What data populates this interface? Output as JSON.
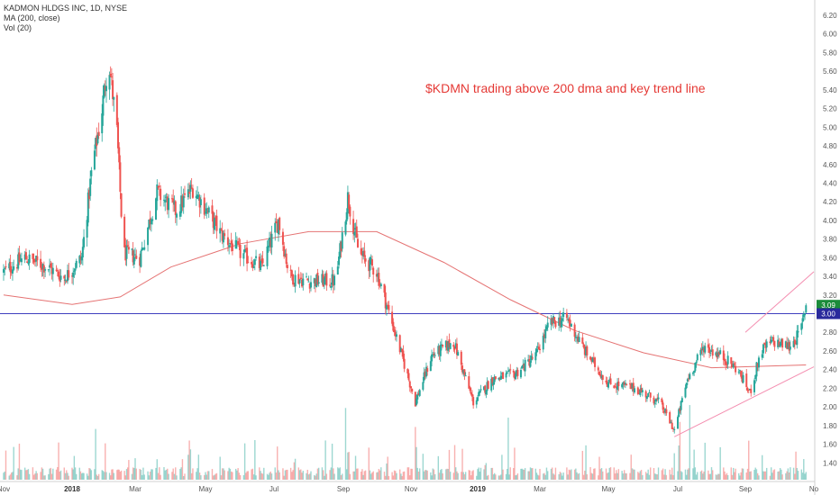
{
  "legend": {
    "symbol": "KADMON HLDGS INC, 1D, NYSE",
    "ma": "MA (200, close)",
    "vol": "Vol (20)"
  },
  "annotation": "$KDMN trading above 200 dma and key trend line",
  "colors": {
    "up": "#26a69a",
    "down": "#ef5350",
    "ma": "#e57373",
    "horizontal_line": "#3f3fbf",
    "trend_line": "#f48fb1",
    "price_badge": "#1b8c3a",
    "level_badge": "#2a2a9c"
  },
  "chart_data": {
    "type": "candlestick",
    "y_axis": {
      "ticks": [
        "6.20",
        "6.00",
        "5.80",
        "5.60",
        "5.40",
        "5.20",
        "5.00",
        "4.80",
        "4.60",
        "4.40",
        "4.20",
        "4.00",
        "3.80",
        "3.60",
        "3.40",
        "3.20",
        "3.00",
        "2.80",
        "2.60",
        "2.40",
        "2.20",
        "2.00",
        "1.80",
        "1.60",
        "1.40"
      ],
      "range": [
        1.27,
        6.33
      ]
    },
    "x_axis": {
      "labels": [
        {
          "text": "Nov",
          "date": "2017-11-01",
          "bold": false
        },
        {
          "text": "2018",
          "date": "2018-01-01",
          "bold": true
        },
        {
          "text": "Mar",
          "date": "2018-03-01",
          "bold": false
        },
        {
          "text": "May",
          "date": "2018-05-01",
          "bold": false
        },
        {
          "text": "Jul",
          "date": "2018-07-01",
          "bold": false
        },
        {
          "text": "Sep",
          "date": "2018-09-01",
          "bold": false
        },
        {
          "text": "Nov",
          "date": "2018-11-01",
          "bold": false
        },
        {
          "text": "2019",
          "date": "2019-01-01",
          "bold": true
        },
        {
          "text": "Mar",
          "date": "2019-03-01",
          "bold": false
        },
        {
          "text": "May",
          "date": "2019-05-01",
          "bold": false
        },
        {
          "text": "Jul",
          "date": "2019-07-01",
          "bold": false
        },
        {
          "text": "Sep",
          "date": "2019-09-01",
          "bold": false
        },
        {
          "text": "No",
          "date": "2019-11-01",
          "bold": false
        }
      ]
    },
    "price_path": [
      [
        "2017-11-01",
        3.45
      ],
      [
        "2017-11-20",
        3.6
      ],
      [
        "2017-12-10",
        3.5
      ],
      [
        "2017-12-25",
        3.38
      ],
      [
        "2018-01-10",
        3.6
      ],
      [
        "2018-01-20",
        4.6
      ],
      [
        "2018-01-28",
        5.1
      ],
      [
        "2018-02-04",
        5.75
      ],
      [
        "2018-02-12",
        4.95
      ],
      [
        "2018-02-18",
        3.65
      ],
      [
        "2018-03-05",
        3.6
      ],
      [
        "2018-03-20",
        4.3
      ],
      [
        "2018-04-05",
        4.1
      ],
      [
        "2018-04-20",
        4.35
      ],
      [
        "2018-05-15",
        3.85
      ],
      [
        "2018-06-01",
        3.65
      ],
      [
        "2018-06-20",
        3.5
      ],
      [
        "2018-07-05",
        4.0
      ],
      [
        "2018-07-15",
        3.4
      ],
      [
        "2018-08-01",
        3.35
      ],
      [
        "2018-08-25",
        3.35
      ],
      [
        "2018-09-05",
        4.25
      ],
      [
        "2018-09-15",
        3.65
      ],
      [
        "2018-10-01",
        3.45
      ],
      [
        "2018-10-20",
        2.7
      ],
      [
        "2018-11-05",
        2.05
      ],
      [
        "2018-11-20",
        2.55
      ],
      [
        "2018-12-10",
        2.7
      ],
      [
        "2018-12-28",
        2.05
      ],
      [
        "2019-01-15",
        2.3
      ],
      [
        "2019-02-05",
        2.35
      ],
      [
        "2019-02-25",
        2.55
      ],
      [
        "2019-03-10",
        2.9
      ],
      [
        "2019-03-25",
        2.95
      ],
      [
        "2019-04-10",
        2.6
      ],
      [
        "2019-05-01",
        2.25
      ],
      [
        "2019-05-25",
        2.2
      ],
      [
        "2019-06-15",
        2.05
      ],
      [
        "2019-06-28",
        1.75
      ],
      [
        "2019-07-10",
        2.3
      ],
      [
        "2019-07-25",
        2.65
      ],
      [
        "2019-08-10",
        2.55
      ],
      [
        "2019-08-25",
        2.4
      ],
      [
        "2019-09-05",
        2.15
      ],
      [
        "2019-09-15",
        2.6
      ],
      [
        "2019-09-25",
        2.7
      ],
      [
        "2019-10-10",
        2.65
      ],
      [
        "2019-10-20",
        2.8
      ],
      [
        "2019-10-25",
        3.09
      ]
    ],
    "ma_200_path": [
      [
        "2017-11-01",
        3.2
      ],
      [
        "2018-01-01",
        3.1
      ],
      [
        "2018-02-15",
        3.18
      ],
      [
        "2018-04-01",
        3.5
      ],
      [
        "2018-06-01",
        3.75
      ],
      [
        "2018-08-01",
        3.88
      ],
      [
        "2018-10-01",
        3.88
      ],
      [
        "2018-12-01",
        3.55
      ],
      [
        "2019-02-01",
        3.15
      ],
      [
        "2019-04-01",
        2.82
      ],
      [
        "2019-06-01",
        2.58
      ],
      [
        "2019-08-01",
        2.42
      ],
      [
        "2019-10-25",
        2.45
      ]
    ],
    "horizontal_level": 3.0,
    "trend_lines": [
      {
        "from": [
          "2019-06-28",
          1.68
        ],
        "to": [
          "2019-11-01",
          2.43
        ]
      },
      {
        "from": [
          "2019-09-01",
          2.8
        ],
        "to": [
          "2019-11-01",
          3.45
        ]
      }
    ],
    "badges": {
      "last_price": "3.09",
      "level": "3.00"
    },
    "series": [
      {
        "values_ref": "price_path"
      },
      {
        "name": "MA (200, close)",
        "values_ref": "ma_200_path"
      },
      {
        "name": "Vol (20)"
      }
    ]
  }
}
